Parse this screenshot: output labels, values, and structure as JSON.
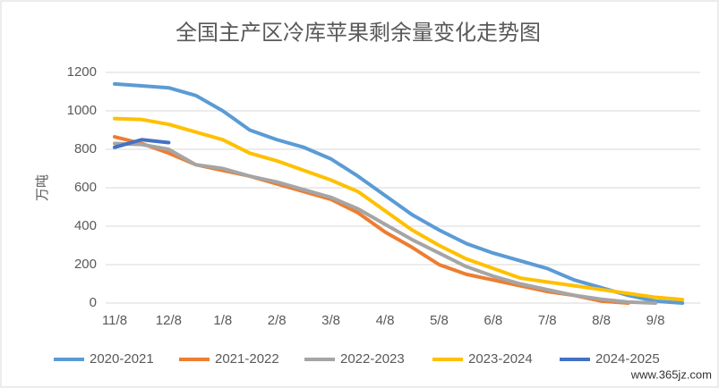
{
  "chart_data": {
    "type": "line",
    "title": "全国主产区冷库苹果剩余量变化走势图",
    "y_label": "万吨",
    "categories": [
      "11/8",
      null,
      "12/8",
      null,
      "1/8",
      null,
      "2/8",
      null,
      "3/8",
      null,
      "4/8",
      null,
      "5/8",
      null,
      "6/8",
      null,
      "7/8",
      null,
      "8/8",
      null,
      "9/8",
      null
    ],
    "series": [
      {
        "name": "2020-2021",
        "color": "#5B9BD5",
        "values": [
          1140,
          1130,
          1120,
          1080,
          1000,
          900,
          850,
          810,
          750,
          660,
          560,
          460,
          380,
          310,
          260,
          220,
          180,
          120,
          80,
          40,
          10,
          0
        ]
      },
      {
        "name": "2021-2022",
        "color": "#ED7D31",
        "values": [
          865,
          830,
          780,
          720,
          690,
          660,
          620,
          580,
          540,
          470,
          370,
          290,
          200,
          150,
          120,
          90,
          60,
          40,
          10,
          0,
          null,
          null
        ]
      },
      {
        "name": "2022-2023",
        "color": "#A5A5A5",
        "values": [
          830,
          825,
          800,
          720,
          700,
          660,
          630,
          590,
          550,
          490,
          410,
          330,
          260,
          190,
          140,
          100,
          70,
          40,
          20,
          5,
          0,
          null
        ]
      },
      {
        "name": "2023-2024",
        "color": "#FFC000",
        "values": [
          960,
          955,
          930,
          890,
          850,
          780,
          740,
          690,
          640,
          580,
          480,
          380,
          300,
          230,
          180,
          130,
          110,
          90,
          70,
          50,
          30,
          18
        ]
      },
      {
        "name": "2024-2025",
        "color": "#4472C4",
        "values": [
          810,
          850,
          835,
          null,
          null,
          null,
          null,
          null,
          null,
          null,
          null,
          null,
          null,
          null,
          null,
          null,
          null,
          null,
          null,
          null,
          null,
          null
        ]
      }
    ],
    "ylim": [
      0,
      1200
    ],
    "yticks": [
      0,
      200,
      400,
      600,
      800,
      1000,
      1200
    ],
    "grid": true,
    "legend": "bottom",
    "watermark": "www.365jz.com"
  }
}
